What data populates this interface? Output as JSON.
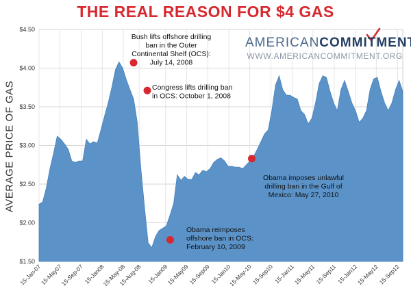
{
  "chart_data": {
    "type": "area",
    "title": "THE REAL REASON FOR $4 GAS",
    "ylabel": "AVERAGE PRICE OF GAS",
    "xlabel": "",
    "ylim": [
      1.5,
      4.5
    ],
    "yticks": [
      "$1.50",
      "$2.00",
      "$2.50",
      "$3.00",
      "$3.50",
      "$4.00",
      "$4.50"
    ],
    "xticks": [
      "15-Jan-07",
      "15-May07",
      "15-Sep-07",
      "15-Jan08",
      "15-May-08",
      "15-Aug-08",
      "15-Jan09",
      "15-May09",
      "15-Sep09",
      "15-Jan10",
      "15-May-10",
      "15-Sep10",
      "15-Jan11",
      "15-May11",
      "15-Sep11",
      "15-Jan12",
      "15-May12",
      "15-Sep12"
    ],
    "grid": true,
    "color": "#5b93c9",
    "series": [
      {
        "x": [
          "2007-01-15",
          "2007-02-05",
          "2007-02-26",
          "2007-03-19",
          "2007-04-09",
          "2007-04-30",
          "2007-05-21",
          "2007-06-11",
          "2007-07-02",
          "2007-07-23",
          "2007-08-13",
          "2007-09-03",
          "2007-09-24",
          "2007-10-15",
          "2007-11-05",
          "2007-11-26",
          "2007-12-17",
          "2008-01-07",
          "2008-01-28",
          "2008-02-18",
          "2008-03-10",
          "2008-03-31",
          "2008-04-21",
          "2008-05-12",
          "2008-06-02",
          "2008-06-23",
          "2008-07-14",
          "2008-08-04",
          "2008-08-25",
          "2008-09-15",
          "2008-10-06",
          "2008-10-27",
          "2008-11-17",
          "2008-12-08",
          "2008-12-29",
          "2009-01-19",
          "2009-02-09",
          "2009-03-02",
          "2009-03-23",
          "2009-04-13",
          "2009-05-04",
          "2009-05-25",
          "2009-06-15",
          "2009-07-06",
          "2009-07-27",
          "2009-08-17",
          "2009-09-07",
          "2009-09-28",
          "2009-10-19",
          "2009-11-09",
          "2009-11-30",
          "2009-12-21",
          "2010-01-11",
          "2010-02-01",
          "2010-02-22",
          "2010-03-15",
          "2010-04-05",
          "2010-04-26",
          "2010-05-17",
          "2010-06-07",
          "2010-06-28",
          "2010-07-19",
          "2010-08-09",
          "2010-08-30",
          "2010-09-20",
          "2010-10-11",
          "2010-11-01",
          "2010-11-22",
          "2010-12-13",
          "2011-01-03",
          "2011-01-24",
          "2011-02-14",
          "2011-03-07",
          "2011-03-28",
          "2011-04-18",
          "2011-05-09",
          "2011-05-30",
          "2011-06-20",
          "2011-07-11",
          "2011-08-01",
          "2011-08-22",
          "2011-09-12",
          "2011-10-03",
          "2011-10-24",
          "2011-11-14",
          "2011-12-05",
          "2011-12-26",
          "2012-01-16",
          "2012-02-06",
          "2012-02-27",
          "2012-03-19",
          "2012-04-09",
          "2012-04-30",
          "2012-05-21",
          "2012-06-11",
          "2012-07-02",
          "2012-07-23",
          "2012-08-13",
          "2012-09-03",
          "2012-09-24",
          "2012-10-15"
        ],
        "values": [
          2.24,
          2.27,
          2.45,
          2.7,
          2.9,
          3.12,
          3.08,
          3.02,
          2.95,
          2.8,
          2.78,
          2.8,
          2.8,
          3.08,
          3.02,
          3.05,
          3.03,
          3.2,
          3.38,
          3.55,
          3.75,
          3.98,
          4.08,
          4.0,
          3.85,
          3.72,
          3.6,
          3.3,
          2.7,
          2.2,
          1.74,
          1.68,
          1.82,
          1.9,
          1.93,
          1.96,
          2.1,
          2.25,
          2.62,
          2.55,
          2.6,
          2.56,
          2.56,
          2.65,
          2.62,
          2.68,
          2.66,
          2.7,
          2.78,
          2.82,
          2.84,
          2.8,
          2.73,
          2.73,
          2.72,
          2.72,
          2.7,
          2.75,
          2.8,
          2.86,
          2.95,
          3.05,
          3.15,
          3.2,
          3.45,
          3.78,
          3.9,
          3.72,
          3.65,
          3.65,
          3.62,
          3.6,
          3.45,
          3.4,
          3.28,
          3.35,
          3.55,
          3.8,
          3.9,
          3.88,
          3.7,
          3.55,
          3.45,
          3.72,
          3.84,
          3.7,
          3.55,
          3.45,
          3.3,
          3.35,
          3.45,
          3.72,
          3.86,
          3.88,
          3.7,
          3.55,
          3.45,
          3.55,
          3.72,
          3.84,
          3.7
        ]
      }
    ],
    "annotations": [
      {
        "date": "2008-07-14",
        "value": 4.07,
        "lines": [
          "Bush lifts offshore drilling",
          "ban in the Outer",
          "Continental Shelf (OCS):",
          "July 14, 2008"
        ]
      },
      {
        "date": "2008-10-01",
        "value": 3.71,
        "lines": [
          "Congress lifts drilling ban",
          "in OCS: October 1, 2008"
        ]
      },
      {
        "date": "2009-02-10",
        "value": 1.78,
        "lines": [
          "Obama reimposes",
          "offshore ban in OCS:",
          "February 10, 2009"
        ]
      },
      {
        "date": "2010-05-27",
        "value": 2.83,
        "lines": [
          "Obama imposes unlawful",
          "drilling ban in the Gulf of",
          "Mexico: May 27, 2010"
        ]
      }
    ]
  },
  "brand": {
    "name_part1": "AMERICAN",
    "name_part2": "COMMITMENT",
    "url": "WWW.AMERICANCOMMITMENT.ORG",
    "check_color": "#d8282f"
  }
}
